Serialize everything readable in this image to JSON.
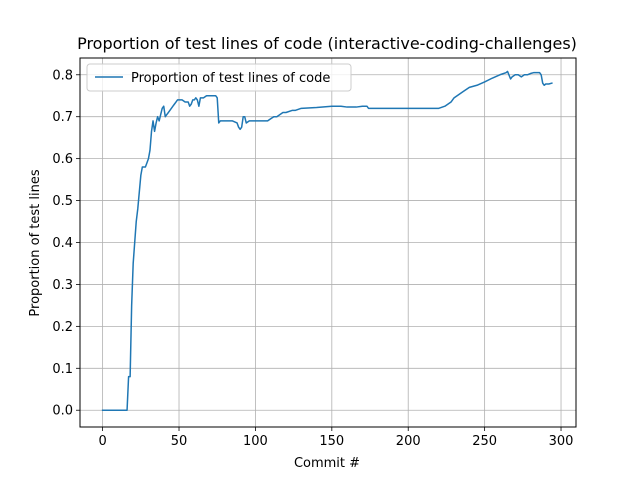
{
  "chart_data": {
    "type": "line",
    "title": "Proportion of test lines of code (interactive-coding-challenges)",
    "xlabel": "Commit #",
    "ylabel": "Proportion of test lines",
    "xlim": [
      -14.8,
      309.8
    ],
    "ylim": [
      -0.04,
      0.84
    ],
    "xticks": [
      0,
      50,
      100,
      150,
      200,
      250,
      300
    ],
    "yticks": [
      0.0,
      0.1,
      0.2,
      0.3,
      0.4,
      0.5,
      0.6,
      0.7,
      0.8
    ],
    "xtick_labels": [
      "0",
      "50",
      "100",
      "150",
      "200",
      "250",
      "300"
    ],
    "ytick_labels": [
      "0.0",
      "0.1",
      "0.2",
      "0.3",
      "0.4",
      "0.5",
      "0.6",
      "0.7",
      "0.8"
    ],
    "grid": true,
    "legend_position": "upper-left",
    "series": [
      {
        "name": "Proportion of test lines of code",
        "color": "#1f77b4",
        "x": [
          0,
          5,
          10,
          15,
          16,
          17,
          18,
          19,
          20,
          21,
          22,
          23,
          24,
          25,
          26,
          27,
          28,
          29,
          30,
          31,
          32,
          33,
          34,
          35,
          36,
          37,
          38,
          39,
          40,
          41,
          42,
          43,
          44,
          45,
          46,
          47,
          48,
          49,
          50,
          52,
          54,
          56,
          57,
          58,
          59,
          60,
          61,
          62,
          63,
          64,
          65,
          66,
          68,
          70,
          72,
          74,
          75,
          76,
          77,
          78,
          80,
          85,
          88,
          89,
          90,
          91,
          92,
          93,
          94,
          96,
          100,
          104,
          105,
          108,
          110,
          112,
          114,
          116,
          118,
          120,
          124,
          126,
          130,
          140,
          150,
          156,
          160,
          166,
          170,
          173,
          174,
          176,
          180,
          184,
          190,
          200,
          206,
          210,
          214,
          218,
          220,
          224,
          228,
          230,
          234,
          236,
          240,
          245,
          250,
          255,
          260,
          264,
          265,
          267,
          268,
          270,
          272,
          274,
          276,
          278,
          280,
          282,
          284,
          286,
          287,
          288,
          289,
          290,
          291,
          292,
          294
        ],
        "y": [
          0.0,
          0.0,
          0.0,
          0.0,
          0.0,
          0.08,
          0.08,
          0.25,
          0.35,
          0.4,
          0.45,
          0.48,
          0.52,
          0.56,
          0.58,
          0.58,
          0.58,
          0.59,
          0.6,
          0.62,
          0.665,
          0.69,
          0.665,
          0.685,
          0.7,
          0.69,
          0.705,
          0.72,
          0.725,
          0.7,
          0.705,
          0.71,
          0.715,
          0.72,
          0.725,
          0.73,
          0.735,
          0.74,
          0.74,
          0.74,
          0.735,
          0.735,
          0.725,
          0.73,
          0.74,
          0.74,
          0.745,
          0.74,
          0.725,
          0.745,
          0.745,
          0.745,
          0.75,
          0.75,
          0.75,
          0.75,
          0.745,
          0.685,
          0.69,
          0.69,
          0.69,
          0.69,
          0.685,
          0.675,
          0.67,
          0.675,
          0.7,
          0.7,
          0.685,
          0.69,
          0.69,
          0.69,
          0.69,
          0.69,
          0.695,
          0.7,
          0.7,
          0.705,
          0.71,
          0.71,
          0.715,
          0.715,
          0.72,
          0.722,
          0.725,
          0.725,
          0.723,
          0.723,
          0.725,
          0.725,
          0.72,
          0.72,
          0.72,
          0.72,
          0.72,
          0.72,
          0.72,
          0.72,
          0.72,
          0.72,
          0.72,
          0.725,
          0.735,
          0.745,
          0.755,
          0.76,
          0.77,
          0.775,
          0.783,
          0.792,
          0.8,
          0.805,
          0.808,
          0.79,
          0.795,
          0.8,
          0.8,
          0.795,
          0.8,
          0.8,
          0.803,
          0.805,
          0.805,
          0.805,
          0.8,
          0.78,
          0.775,
          0.778,
          0.778,
          0.778,
          0.78
        ]
      }
    ]
  }
}
